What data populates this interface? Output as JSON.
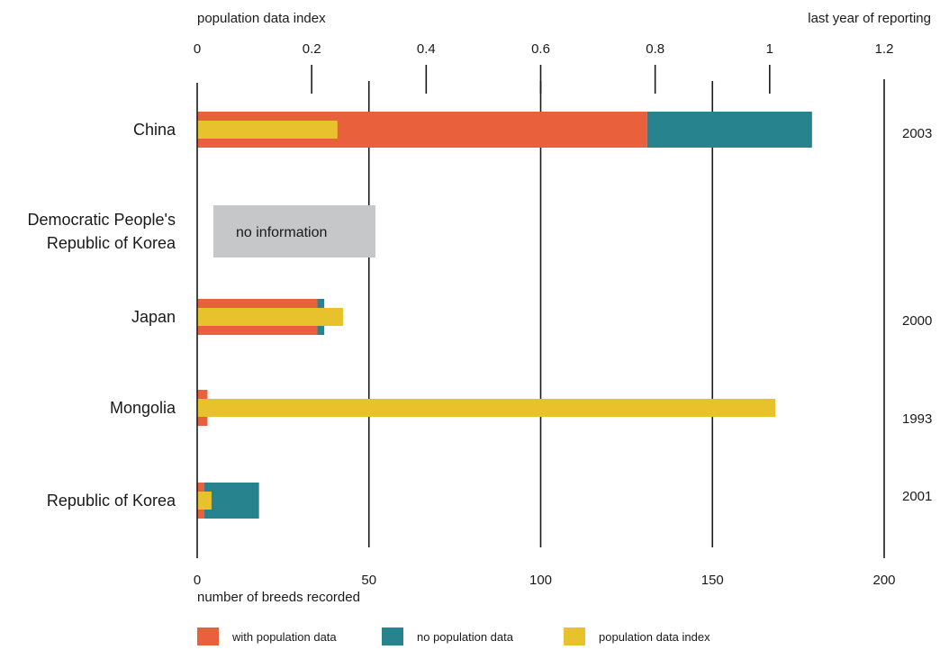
{
  "chart_data": {
    "type": "bar",
    "orientation": "horizontal",
    "stacked": true,
    "categories": [
      "China",
      "Democratic People's Republic of Korea",
      "Japan",
      "Mongolia",
      "Republic of Korea"
    ],
    "category_lines": [
      [
        "China"
      ],
      [
        "Democratic People's",
        "Republic of Korea"
      ],
      [
        "Japan"
      ],
      [
        "Mongolia"
      ],
      [
        "Republic of Korea"
      ]
    ],
    "series": [
      {
        "name": "with population data",
        "axis": "bottom",
        "color": "#e8603c",
        "values": [
          131,
          null,
          35,
          3,
          2
        ]
      },
      {
        "name": "no population data",
        "axis": "bottom",
        "color": "#27848f",
        "values": [
          48,
          null,
          2,
          0,
          16
        ]
      },
      {
        "name": "population data index",
        "axis": "top",
        "color": "#e8c22c",
        "values": [
          0.245,
          null,
          0.255,
          1.01,
          0.025
        ]
      }
    ],
    "last_year_of_reporting": [
      "2003",
      "",
      "2000",
      "1993",
      "2001"
    ],
    "no_info": {
      "category": "Democratic People's Republic of Korea",
      "label": "no information",
      "color": "#c6c7c9"
    },
    "bottom_axis": {
      "title": "number of breeds recorded",
      "range": [
        0,
        200
      ],
      "ticks": [
        0,
        50,
        100,
        150,
        200
      ],
      "tick_labels": [
        "0",
        "50",
        "100",
        "150",
        "200"
      ]
    },
    "top_axis": {
      "title": "population data index",
      "range": [
        0,
        1.2
      ],
      "ticks": [
        0,
        0.2,
        0.4,
        0.6,
        0.8,
        1,
        1.2
      ],
      "tick_labels": [
        "0",
        "0.2",
        "0.4",
        "0.6",
        "0.8",
        "1",
        "1.2"
      ]
    },
    "right_label": "last year of reporting",
    "legend": {
      "position": "bottom",
      "items": [
        {
          "label": "with population data",
          "color": "#e8603c"
        },
        {
          "label": "no population data",
          "color": "#27848f"
        },
        {
          "label": "population data index",
          "color": "#e8c22c"
        }
      ]
    }
  }
}
